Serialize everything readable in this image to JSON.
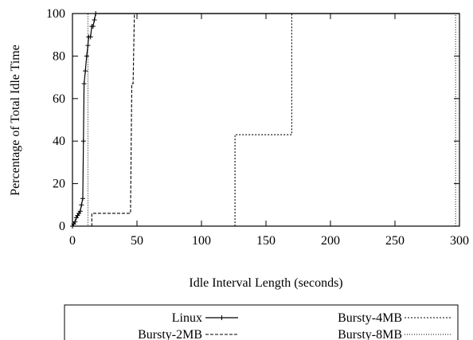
{
  "chart_data": {
    "type": "line",
    "title": "",
    "xlabel": "Idle Interval Length (seconds)",
    "ylabel": "Percentage of Total Idle Time",
    "xlim": [
      0,
      300
    ],
    "ylim": [
      0,
      100
    ],
    "x_ticks": [
      "0",
      "50",
      "100",
      "150",
      "200",
      "250",
      "300"
    ],
    "y_ticks": [
      "0",
      "20",
      "40",
      "60",
      "80",
      "100"
    ],
    "grid": false,
    "legend_position": "bottom",
    "series": [
      {
        "name": "Linux",
        "line_style": "solid",
        "marker": "plus",
        "points": [
          [
            0,
            0
          ],
          [
            1,
            1
          ],
          [
            2,
            2
          ],
          [
            3,
            4
          ],
          [
            4,
            5
          ],
          [
            5,
            6
          ],
          [
            6,
            7
          ],
          [
            7,
            10
          ],
          [
            8,
            13
          ],
          [
            8.5,
            40
          ],
          [
            9,
            67
          ],
          [
            10,
            73
          ],
          [
            11,
            80
          ],
          [
            12,
            85
          ],
          [
            12.5,
            89
          ],
          [
            14,
            89
          ],
          [
            15,
            94
          ],
          [
            16,
            94
          ],
          [
            17,
            97
          ],
          [
            18,
            100
          ],
          [
            300,
            100
          ]
        ]
      },
      {
        "name": "Bursty-2MB",
        "line_style": "dashed",
        "marker": "none",
        "points": [
          [
            0,
            0
          ],
          [
            15,
            0
          ],
          [
            15,
            6
          ],
          [
            45,
            6
          ],
          [
            46,
            67
          ],
          [
            47,
            67
          ],
          [
            48,
            100
          ],
          [
            300,
            100
          ]
        ]
      },
      {
        "name": "Bursty-4MB",
        "line_style": "dotted",
        "marker": "none",
        "points": [
          [
            0,
            0
          ],
          [
            126,
            0
          ],
          [
            126,
            43
          ],
          [
            170,
            43
          ],
          [
            170,
            100
          ],
          [
            300,
            100
          ]
        ]
      },
      {
        "name": "Bursty-8MB",
        "line_style": "fine-dotted",
        "marker": "none",
        "points": [
          [
            0,
            0
          ],
          [
            12,
            0
          ],
          [
            12,
            100
          ],
          [
            297,
            100
          ],
          [
            297,
            0
          ],
          [
            300,
            0
          ]
        ]
      }
    ]
  }
}
